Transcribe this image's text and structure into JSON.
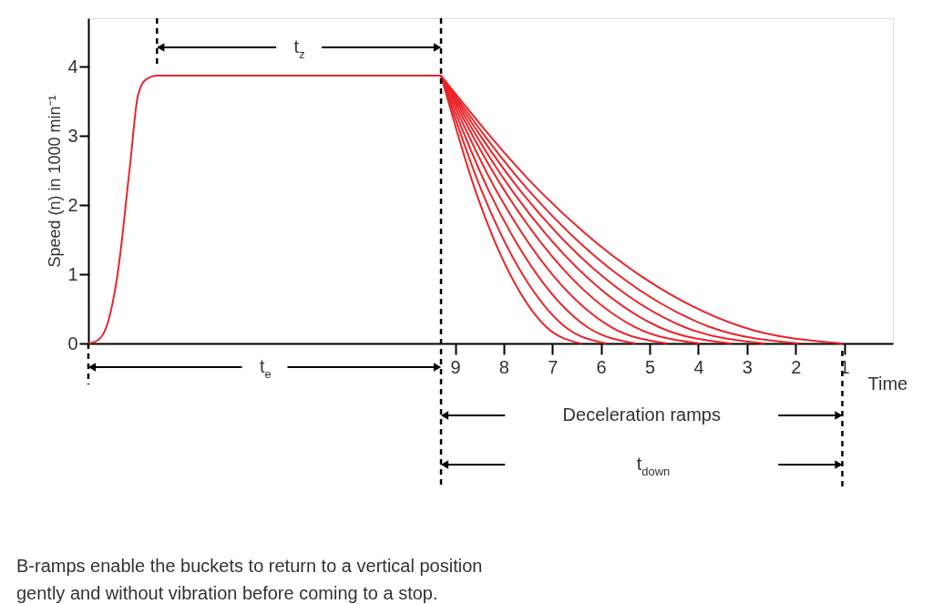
{
  "chart_data": {
    "type": "line",
    "xlabel": "Time",
    "ylabel": "Speed (n) in 1000 min⁻¹",
    "xlim": [
      16.54,
      0
    ],
    "ylim": [
      0,
      4.7
    ],
    "xticks": [
      9,
      8,
      7,
      6,
      5,
      4,
      3,
      2,
      1
    ],
    "yticks": [
      0,
      1,
      2,
      3,
      4
    ],
    "grid": false,
    "marker": "none",
    "line_style": "solid",
    "series": [
      {
        "color": "#e8262a",
        "x": [
          16.54,
          16.34,
          16.14,
          15.94,
          15.68,
          15.53,
          15.38,
          15.13,
          9.29
        ],
        "values": [
          0,
          0.05,
          0.3,
          1.0,
          2.6,
          3.55,
          3.8,
          3.87,
          3.87
        ]
      },
      {
        "color": "#e8262a",
        "x": [
          9.29,
          8.57,
          7.85,
          7.13,
          6.41
        ],
        "values": [
          3.87,
          2.18,
          0.97,
          0.24,
          0
        ]
      },
      {
        "color": "#e8262a",
        "x": [
          9.29,
          8.44,
          7.59,
          6.74,
          5.89
        ],
        "values": [
          3.87,
          2.18,
          0.97,
          0.24,
          0
        ]
      },
      {
        "color": "#e8262a",
        "x": [
          9.29,
          8.29,
          7.29,
          6.29,
          5.29
        ],
        "values": [
          3.87,
          2.18,
          0.97,
          0.24,
          0
        ]
      },
      {
        "color": "#e8262a",
        "x": [
          9.29,
          8.13,
          6.97,
          5.8,
          4.64
        ],
        "values": [
          3.87,
          2.18,
          0.97,
          0.24,
          0
        ]
      },
      {
        "color": "#e8262a",
        "x": [
          9.29,
          7.96,
          6.64,
          5.31,
          3.98
        ],
        "values": [
          3.87,
          2.18,
          0.97,
          0.24,
          0
        ]
      },
      {
        "color": "#e8262a",
        "x": [
          9.29,
          7.8,
          6.31,
          4.82,
          3.33
        ],
        "values": [
          3.87,
          2.18,
          0.97,
          0.24,
          0
        ]
      },
      {
        "color": "#e8262a",
        "x": [
          9.29,
          7.63,
          5.97,
          4.3,
          2.64
        ],
        "values": [
          3.87,
          2.18,
          0.97,
          0.24,
          0
        ]
      },
      {
        "color": "#e8262a",
        "x": [
          9.29,
          7.45,
          5.61,
          3.77,
          1.93
        ],
        "values": [
          3.87,
          2.18,
          0.97,
          0.24,
          0
        ]
      },
      {
        "color": "#e8262a",
        "x": [
          9.29,
          7.23,
          5.17,
          3.1,
          1.04
        ],
        "values": [
          3.87,
          2.18,
          0.97,
          0.24,
          0
        ]
      }
    ],
    "ref_lines": [
      {
        "axis": "x",
        "value": 15.13,
        "line_style": "dashed",
        "color": "#000000"
      },
      {
        "axis": "x",
        "value": 9.29,
        "line_style": "dashed",
        "color": "#000000"
      }
    ],
    "annotations": [
      "t$_{e}$",
      {
        "text": "t$_{z}$",
        "x": 12.21,
        "y": 3.87
      },
      "Deceleration ramps",
      "t$_{down}$",
      "B-ramps enable the buckets to return to a vertical position\ngently and without vibration before coming to a stop."
    ]
  }
}
